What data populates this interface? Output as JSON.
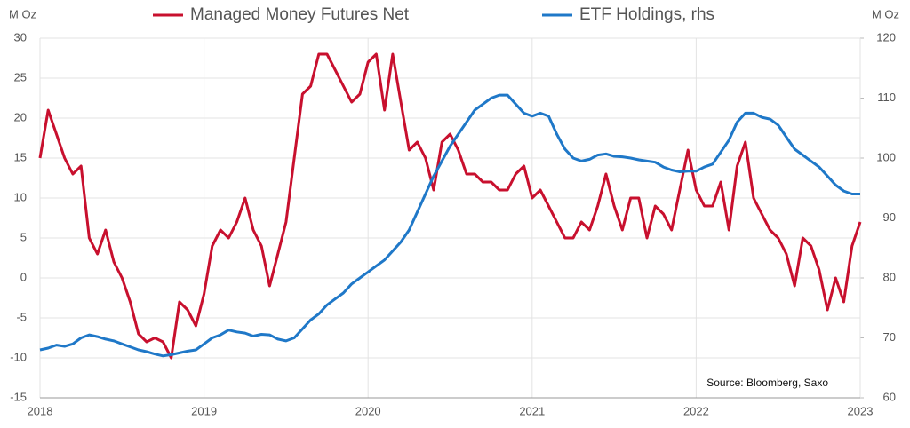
{
  "chart_data": {
    "type": "line",
    "y_label": "M Oz",
    "y2_label": "M Oz",
    "annotation": "Source: Bloomberg, Saxo",
    "x": [
      2018.0,
      2018.05,
      2018.1,
      2018.15,
      2018.2,
      2018.25,
      2018.3,
      2018.35,
      2018.4,
      2018.45,
      2018.5,
      2018.55,
      2018.6,
      2018.65,
      2018.7,
      2018.75,
      2018.8,
      2018.85,
      2018.9,
      2018.95,
      2019.0,
      2019.05,
      2019.1,
      2019.15,
      2019.2,
      2019.25,
      2019.3,
      2019.35,
      2019.4,
      2019.45,
      2019.5,
      2019.55,
      2019.6,
      2019.65,
      2019.7,
      2019.75,
      2019.8,
      2019.85,
      2019.9,
      2019.95,
      2020.0,
      2020.05,
      2020.1,
      2020.15,
      2020.2,
      2020.25,
      2020.3,
      2020.35,
      2020.4,
      2020.45,
      2020.5,
      2020.55,
      2020.6,
      2020.65,
      2020.7,
      2020.75,
      2020.8,
      2020.85,
      2020.9,
      2020.95,
      2021.0,
      2021.05,
      2021.1,
      2021.15,
      2021.2,
      2021.25,
      2021.3,
      2021.35,
      2021.4,
      2021.45,
      2021.5,
      2021.55,
      2021.6,
      2021.65,
      2021.7,
      2021.75,
      2021.8,
      2021.85,
      2021.9,
      2021.95,
      2022.0,
      2022.05,
      2022.1,
      2022.15,
      2022.2,
      2022.25,
      2022.3,
      2022.35,
      2022.4,
      2022.45,
      2022.5,
      2022.55,
      2022.6,
      2022.65,
      2022.7,
      2022.75,
      2022.8,
      2022.85,
      2022.9,
      2022.95,
      2023.0
    ],
    "series": [
      {
        "name": "Managed Money Futures Net",
        "color": "#c8102e",
        "axis": "y",
        "values": [
          15,
          21,
          18,
          15,
          13,
          14,
          5,
          3,
          6,
          2,
          0,
          -3,
          -7,
          -8,
          -7.5,
          -8,
          -10,
          -3,
          -4,
          -6,
          -2,
          4,
          6,
          5,
          7,
          10,
          6,
          4,
          -1,
          3,
          7,
          15,
          23,
          24,
          28,
          28,
          26,
          24,
          22,
          23,
          27,
          28,
          21,
          28,
          22,
          16,
          17,
          15,
          11,
          17,
          18,
          16,
          13,
          13,
          12,
          12,
          11,
          11,
          13,
          14,
          10,
          11,
          9,
          7,
          5,
          5,
          7,
          6,
          9,
          13,
          9,
          6,
          10,
          10,
          5,
          9,
          8,
          6,
          11,
          16,
          11,
          9,
          9,
          12,
          6,
          14,
          17,
          10,
          8,
          6,
          5,
          3,
          -1,
          5,
          4,
          1,
          -4,
          0,
          -3,
          4,
          7
        ]
      },
      {
        "name": "ETF Holdings, rhs",
        "color": "#1f78c8",
        "axis": "y2",
        "values": [
          68,
          68.3,
          68.8,
          68.6,
          69,
          70,
          70.5,
          70.2,
          69.8,
          69.5,
          69,
          68.5,
          68,
          67.7,
          67.3,
          67,
          67.2,
          67.5,
          67.8,
          68,
          69,
          70,
          70.5,
          71.3,
          71,
          70.8,
          70.3,
          70.6,
          70.5,
          69.8,
          69.5,
          70,
          71.5,
          73,
          74,
          75.5,
          76.5,
          77.5,
          79,
          80,
          81,
          82,
          83,
          84.5,
          86,
          88,
          91,
          94,
          97,
          99.5,
          102,
          104,
          106,
          108,
          109,
          110,
          110.5,
          110.5,
          109,
          107.5,
          107,
          107.5,
          107,
          104,
          101.5,
          100,
          99.5,
          99.8,
          100.5,
          100.7,
          100.3,
          100.2,
          100,
          99.7,
          99.5,
          99.3,
          98.5,
          98,
          97.7,
          97.8,
          97.8,
          98.5,
          99,
          101,
          103,
          106,
          107.5,
          107.5,
          106.8,
          106.5,
          105.5,
          103.5,
          101.5,
          100.5,
          99.5,
          98.5,
          97,
          95.5,
          94.5,
          94,
          94
        ]
      }
    ],
    "xlim": [
      2018,
      2023
    ],
    "xticks": [
      2018,
      2019,
      2020,
      2021,
      2022,
      2023
    ],
    "ylim": [
      -15,
      30
    ],
    "yticks": [
      -15,
      -10,
      -5,
      0,
      5,
      10,
      15,
      20,
      25,
      30
    ],
    "y2lim": [
      60,
      120
    ],
    "y2ticks": [
      60,
      70,
      80,
      90,
      100,
      110,
      120
    ],
    "grid": true
  }
}
